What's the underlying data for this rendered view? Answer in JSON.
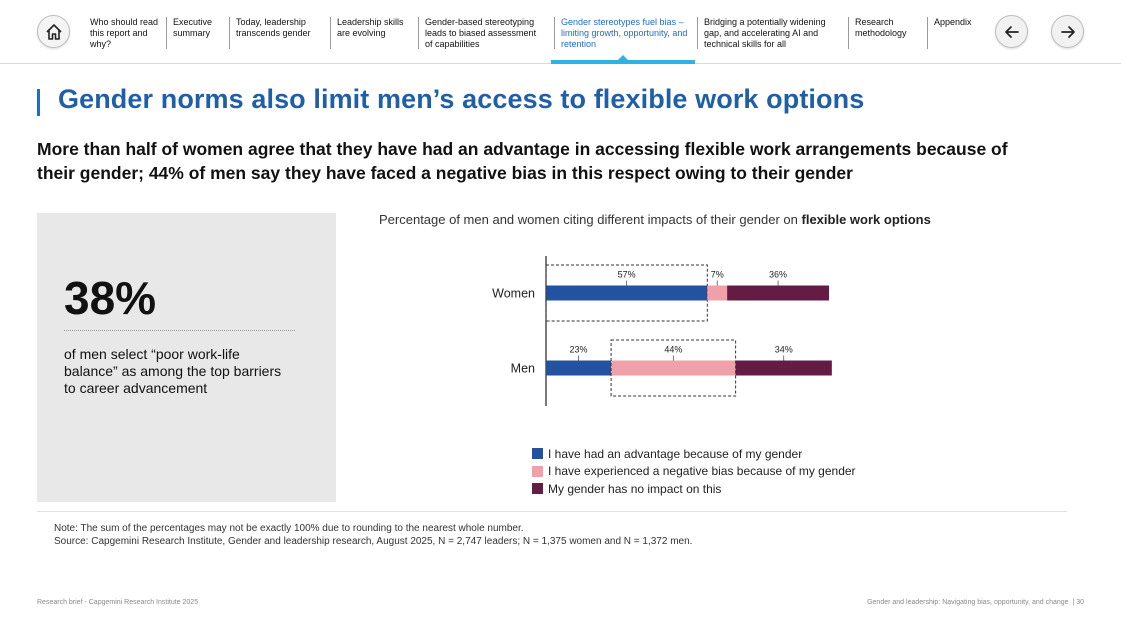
{
  "nav": {
    "items": [
      {
        "label": "Who should read this report and why?"
      },
      {
        "label": "Executive summary"
      },
      {
        "label": "Today, leadership transcends gender"
      },
      {
        "label": "Leadership skills are evolving"
      },
      {
        "label": "Gender-based stereotyping leads to biased assessment of capabilities"
      },
      {
        "label": "Gender stereotypes fuel bias – limiting growth, opportunity, and retention"
      },
      {
        "label": "Bridging a potentially widening gap, and accelerating AI and technical skills for all"
      },
      {
        "label": "Research methodology"
      },
      {
        "label": "Appendix"
      }
    ]
  },
  "page": {
    "title": "Gender norms also limit men’s access to flexible work options",
    "subtitle": "More than half of women agree that they have had an advantage in accessing flexible work arrangements because of their gender; 44% of men say they have faced a negative bias in this respect owing to their gender"
  },
  "stat": {
    "number": "38%",
    "text": "of men select “poor work-life balance” as among the top barriers to career advancement"
  },
  "chart": {
    "caption_prefix": "Percentage of men and women citing different impacts of their gender on ",
    "caption_bold": "flexible work options"
  },
  "chart_data": {
    "type": "bar",
    "orientation": "horizontal",
    "stacked": true,
    "title": "Percentage of men and women citing different impacts of their gender on flexible work options",
    "categories": [
      "Women",
      "Men"
    ],
    "series": [
      {
        "name": "I have had an advantage because of my gender",
        "color": "#2352a0",
        "values": [
          57,
          23
        ]
      },
      {
        "name": "I have experienced a negative bias because of my gender",
        "color": "#f0a0a8",
        "values": [
          7,
          44
        ]
      },
      {
        "name": "My gender has no impact on this",
        "color": "#641c45",
        "values": [
          36,
          34
        ]
      }
    ],
    "highlight": [
      {
        "category": "Women",
        "series": 0
      },
      {
        "category": "Men",
        "series": 1
      }
    ],
    "legend_position": "bottom"
  },
  "notes": {
    "note": "Note: The sum of the percentages may not be exactly 100% due to rounding to the nearest whole number.",
    "source": "Source: Capgemini Research Institute, Gender and leadership research, August 2025, N = 2,747 leaders; N = 1,375 women and N = 1,372 men."
  },
  "footer": {
    "left": "Research brief - Capgemini Research Institute 2025",
    "right": "Gender and leadership: Navigating bias, opportunity, and change",
    "page_number": "30"
  },
  "colors": {
    "title": "#1f5fa8",
    "accent": "#2fb1e3",
    "panel": "#e8e8e8"
  }
}
